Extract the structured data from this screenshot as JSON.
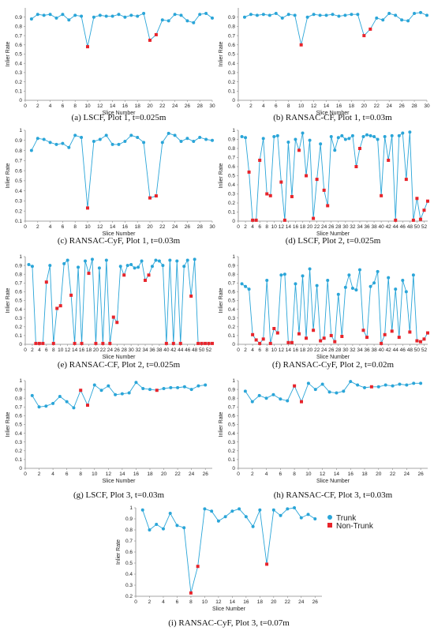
{
  "colors": {
    "trunk": "#2aa5d8",
    "non_trunk": "#e8242b",
    "axis": "#888888"
  },
  "legend": {
    "trunk_label": "Trunk",
    "non_trunk_label": "Non-Trunk",
    "placement": "right of panel (i)"
  },
  "chart_data": [
    {
      "id": "a",
      "type": "line",
      "caption": "(a) LSCF, Plot 1, t=0.025m",
      "xlabel": "Slice Number",
      "ylabel": "Inlier Rate",
      "xlim": [
        0,
        30
      ],
      "xticks": [
        0,
        2,
        4,
        6,
        8,
        10,
        12,
        14,
        16,
        18,
        20,
        22,
        24,
        26,
        28,
        30
      ],
      "ylim": [
        0,
        1
      ],
      "yticks": [
        0,
        0.1,
        0.2,
        0.3,
        0.4,
        0.5,
        0.6,
        0.7,
        0.8,
        0.9
      ],
      "values": [
        0.88,
        0.93,
        0.92,
        0.93,
        0.89,
        0.93,
        0.87,
        0.92,
        0.91,
        0.58,
        0.9,
        0.92,
        0.91,
        0.91,
        0.93,
        0.9,
        0.92,
        0.91,
        0.94,
        0.65,
        0.71,
        0.87,
        0.86,
        0.93,
        0.92,
        0.86,
        0.84,
        0.93,
        0.94,
        0.89
      ],
      "non_trunk": [
        10,
        20,
        21
      ]
    },
    {
      "id": "b",
      "type": "line",
      "caption": "(b) RANSAC-CF, Plot 1, t=0.03m",
      "xlabel": "Slice Number",
      "ylabel": "Inlier Rate",
      "xlim": [
        0,
        30
      ],
      "xticks": [
        0,
        2,
        4,
        6,
        8,
        10,
        12,
        14,
        16,
        18,
        20,
        22,
        24,
        26,
        28,
        30
      ],
      "ylim": [
        0,
        1
      ],
      "yticks": [
        0,
        0.1,
        0.2,
        0.3,
        0.4,
        0.5,
        0.6,
        0.7,
        0.8,
        0.9
      ],
      "values": [
        0.9,
        0.93,
        0.92,
        0.93,
        0.92,
        0.94,
        0.89,
        0.93,
        0.92,
        0.6,
        0.9,
        0.93,
        0.92,
        0.92,
        0.93,
        0.91,
        0.92,
        0.93,
        0.93,
        0.7,
        0.77,
        0.89,
        0.87,
        0.94,
        0.92,
        0.87,
        0.86,
        0.94,
        0.95,
        0.92
      ],
      "non_trunk": [
        10,
        20,
        21
      ]
    },
    {
      "id": "c",
      "type": "line",
      "caption": "(c) RANSAC-CyF, Plot 1, t=0.03m",
      "xlabel": "Slice Number",
      "ylabel": "Inlier Rate",
      "xlim": [
        0,
        30
      ],
      "xticks": [
        0,
        2,
        4,
        6,
        8,
        10,
        12,
        14,
        16,
        18,
        20,
        22,
        24,
        26,
        28,
        30
      ],
      "ylim": [
        0.1,
        1
      ],
      "yticks": [
        0.1,
        0.2,
        0.3,
        0.4,
        0.5,
        0.6,
        0.7,
        0.8,
        0.9,
        1
      ],
      "values": [
        0.8,
        0.92,
        0.91,
        0.88,
        0.86,
        0.87,
        0.83,
        0.95,
        0.93,
        0.23,
        0.89,
        0.91,
        0.95,
        0.86,
        0.86,
        0.89,
        0.95,
        0.93,
        0.88,
        0.33,
        0.35,
        0.88,
        0.97,
        0.95,
        0.89,
        0.92,
        0.89,
        0.93,
        0.91,
        0.9
      ],
      "non_trunk": [
        10,
        20,
        21
      ]
    },
    {
      "id": "d",
      "type": "line",
      "caption": "(d) LSCF, Plot 2, t=0.025m",
      "xlabel": "Slice Number",
      "ylabel": "Inlier Rate",
      "xlim": [
        0,
        53
      ],
      "xticks": [
        0,
        2,
        4,
        6,
        8,
        10,
        12,
        14,
        16,
        18,
        20,
        22,
        24,
        26,
        28,
        30,
        32,
        34,
        36,
        38,
        40,
        42,
        44,
        46,
        48,
        50,
        52
      ],
      "ylim": [
        0,
        1
      ],
      "yticks": [
        0,
        0.1,
        0.2,
        0.3,
        0.4,
        0.5,
        0.6,
        0.7,
        0.8,
        0.9,
        1
      ],
      "values": [
        0.93,
        0.92,
        0.54,
        0.01,
        0.01,
        0.67,
        0.91,
        0.3,
        0.28,
        0.93,
        0.94,
        0.43,
        0.01,
        0.87,
        0.27,
        0.9,
        0.78,
        0.97,
        0.5,
        0.89,
        0.03,
        0.46,
        0.85,
        0.34,
        0.17,
        0.93,
        0.78,
        0.92,
        0.94,
        0.9,
        0.91,
        0.94,
        0.6,
        0.8,
        0.93,
        0.95,
        0.94,
        0.93,
        0.9,
        0.28,
        0.93,
        0.67,
        0.94,
        0.01,
        0.94,
        0.97,
        0.46,
        0.98,
        0.01,
        0.25,
        0.02,
        0.12,
        0.22
      ],
      "non_trunk": [
        3,
        4,
        5,
        6,
        8,
        9,
        12,
        13,
        15,
        17,
        19,
        21,
        22,
        24,
        25,
        33,
        34,
        40,
        42,
        44,
        47,
        49,
        50,
        51,
        52,
        53
      ]
    },
    {
      "id": "e",
      "type": "line",
      "caption": "(e) RANSAC-CF, Plot 2, t=0.025m",
      "xlabel": "Slice Number",
      "ylabel": "Inlier Rate",
      "xlim": [
        0,
        53
      ],
      "xticks": [
        0,
        2,
        4,
        6,
        8,
        10,
        12,
        14,
        16,
        18,
        20,
        22,
        24,
        26,
        28,
        30,
        32,
        34,
        36,
        38,
        40,
        42,
        44,
        46,
        48,
        50,
        52
      ],
      "ylim": [
        0,
        1
      ],
      "yticks": [
        0,
        0.1,
        0.2,
        0.3,
        0.4,
        0.5,
        0.6,
        0.7,
        0.8,
        0.9,
        1
      ],
      "values": [
        0.91,
        0.89,
        0.01,
        0.01,
        0.01,
        0.71,
        0.9,
        0.01,
        0.41,
        0.44,
        0.92,
        0.96,
        0.56,
        0.01,
        0.88,
        0.01,
        0.95,
        0.81,
        0.97,
        0.01,
        0.87,
        0.01,
        0.96,
        0.01,
        0.31,
        0.25,
        0.89,
        0.79,
        0.9,
        0.91,
        0.87,
        0.88,
        0.95,
        0.73,
        0.79,
        0.89,
        0.96,
        0.95,
        0.9,
        0.01,
        0.96,
        0.01,
        0.95,
        0.01,
        0.89,
        0.96,
        0.55,
        0.97,
        0.01,
        0.01,
        0.01,
        0.01,
        0.01
      ],
      "non_trunk": [
        3,
        4,
        5,
        6,
        8,
        9,
        10,
        13,
        14,
        16,
        18,
        20,
        22,
        24,
        25,
        26,
        28,
        34,
        35,
        40,
        42,
        44,
        47,
        49,
        50,
        51,
        52,
        53
      ]
    },
    {
      "id": "f",
      "type": "line",
      "caption": "(f) RANSAC-CyF, Plot 2, t=0.02m",
      "xlabel": "Slice Number",
      "ylabel": "Inlier Rate",
      "xlim": [
        0,
        53
      ],
      "xticks": [
        0,
        2,
        4,
        6,
        8,
        10,
        12,
        14,
        16,
        18,
        20,
        22,
        24,
        26,
        28,
        30,
        32,
        34,
        36,
        38,
        40,
        42,
        44,
        46,
        48,
        50,
        52
      ],
      "ylim": [
        0,
        1
      ],
      "yticks": [
        0,
        0.1,
        0.2,
        0.3,
        0.4,
        0.5,
        0.6,
        0.7,
        0.8,
        0.9,
        1
      ],
      "values": [
        0.69,
        0.66,
        0.63,
        0.11,
        0.05,
        0.01,
        0.06,
        0.73,
        0.01,
        0.18,
        0.13,
        0.79,
        0.8,
        0.02,
        0.02,
        0.69,
        0.12,
        0.78,
        0.07,
        0.86,
        0.16,
        0.67,
        0.04,
        0.07,
        0.73,
        0.1,
        0.03,
        0.57,
        0.09,
        0.65,
        0.79,
        0.64,
        0.62,
        0.85,
        0.16,
        0.08,
        0.66,
        0.7,
        0.83,
        0.01,
        0.11,
        0.76,
        0.15,
        0.63,
        0.08,
        0.73,
        0.6,
        0.14,
        0.79,
        0.04,
        0.03,
        0.06,
        0.13
      ],
      "non_trunk": [
        4,
        5,
        6,
        7,
        9,
        10,
        11,
        14,
        15,
        17,
        19,
        21,
        23,
        24,
        26,
        27,
        29,
        35,
        36,
        40,
        41,
        43,
        45,
        48,
        50,
        51,
        52,
        53
      ]
    },
    {
      "id": "g",
      "type": "line",
      "caption": "(g) LSCF, Plot 3, t=0.03m",
      "xlabel": "Slice Number",
      "ylabel": "Inlier Rate",
      "xlim": [
        0,
        27
      ],
      "xticks": [
        0,
        2,
        4,
        6,
        8,
        10,
        12,
        14,
        16,
        18,
        20,
        22,
        24,
        26
      ],
      "ylim": [
        0,
        1
      ],
      "yticks": [
        0,
        0.1,
        0.2,
        0.3,
        0.4,
        0.5,
        0.6,
        0.7,
        0.8,
        0.9,
        1
      ],
      "values": [
        0.83,
        0.7,
        0.71,
        0.74,
        0.82,
        0.76,
        0.69,
        0.89,
        0.72,
        0.95,
        0.89,
        0.94,
        0.84,
        0.85,
        0.86,
        0.98,
        0.91,
        0.9,
        0.89,
        0.91,
        0.92,
        0.92,
        0.93,
        0.9,
        0.94,
        0.95
      ],
      "non_trunk": [
        8,
        9,
        19
      ]
    },
    {
      "id": "h",
      "type": "line",
      "caption": "(h) RANSAC-CF, Plot 3, t=0.03m",
      "xlabel": "Slice Number",
      "ylabel": "Inlier Rate",
      "xlim": [
        0,
        27
      ],
      "xticks": [
        0,
        2,
        4,
        6,
        8,
        10,
        12,
        14,
        16,
        18,
        20,
        22,
        24,
        26
      ],
      "ylim": [
        0,
        1
      ],
      "yticks": [
        0,
        0.1,
        0.2,
        0.3,
        0.4,
        0.5,
        0.6,
        0.7,
        0.8,
        0.9,
        1
      ],
      "values": [
        0.88,
        0.76,
        0.83,
        0.8,
        0.84,
        0.79,
        0.77,
        0.94,
        0.76,
        0.97,
        0.9,
        0.96,
        0.87,
        0.86,
        0.88,
        0.99,
        0.95,
        0.92,
        0.93,
        0.93,
        0.95,
        0.94,
        0.96,
        0.95,
        0.97,
        0.97
      ],
      "non_trunk": [
        8,
        9,
        19
      ]
    },
    {
      "id": "i",
      "type": "line",
      "caption": "(i) RANSAC-CyF, Plot 3, t=0.07m",
      "xlabel": "Slice Number",
      "ylabel": "Inlier Rate",
      "xlim": [
        0,
        27
      ],
      "xticks": [
        0,
        2,
        4,
        6,
        8,
        10,
        12,
        14,
        16,
        18,
        20,
        22,
        24,
        26
      ],
      "ylim": [
        0.2,
        1
      ],
      "yticks": [
        0.2,
        0.3,
        0.4,
        0.5,
        0.6,
        0.7,
        0.8,
        0.9,
        1
      ],
      "values": [
        0.98,
        0.8,
        0.85,
        0.81,
        0.95,
        0.84,
        0.82,
        0.23,
        0.47,
        0.99,
        0.97,
        0.88,
        0.92,
        0.97,
        0.99,
        0.92,
        0.83,
        0.98,
        0.49,
        0.98,
        0.93,
        0.99,
        1.0,
        0.91,
        0.94,
        0.9
      ],
      "non_trunk": [
        8,
        9,
        19
      ]
    }
  ]
}
